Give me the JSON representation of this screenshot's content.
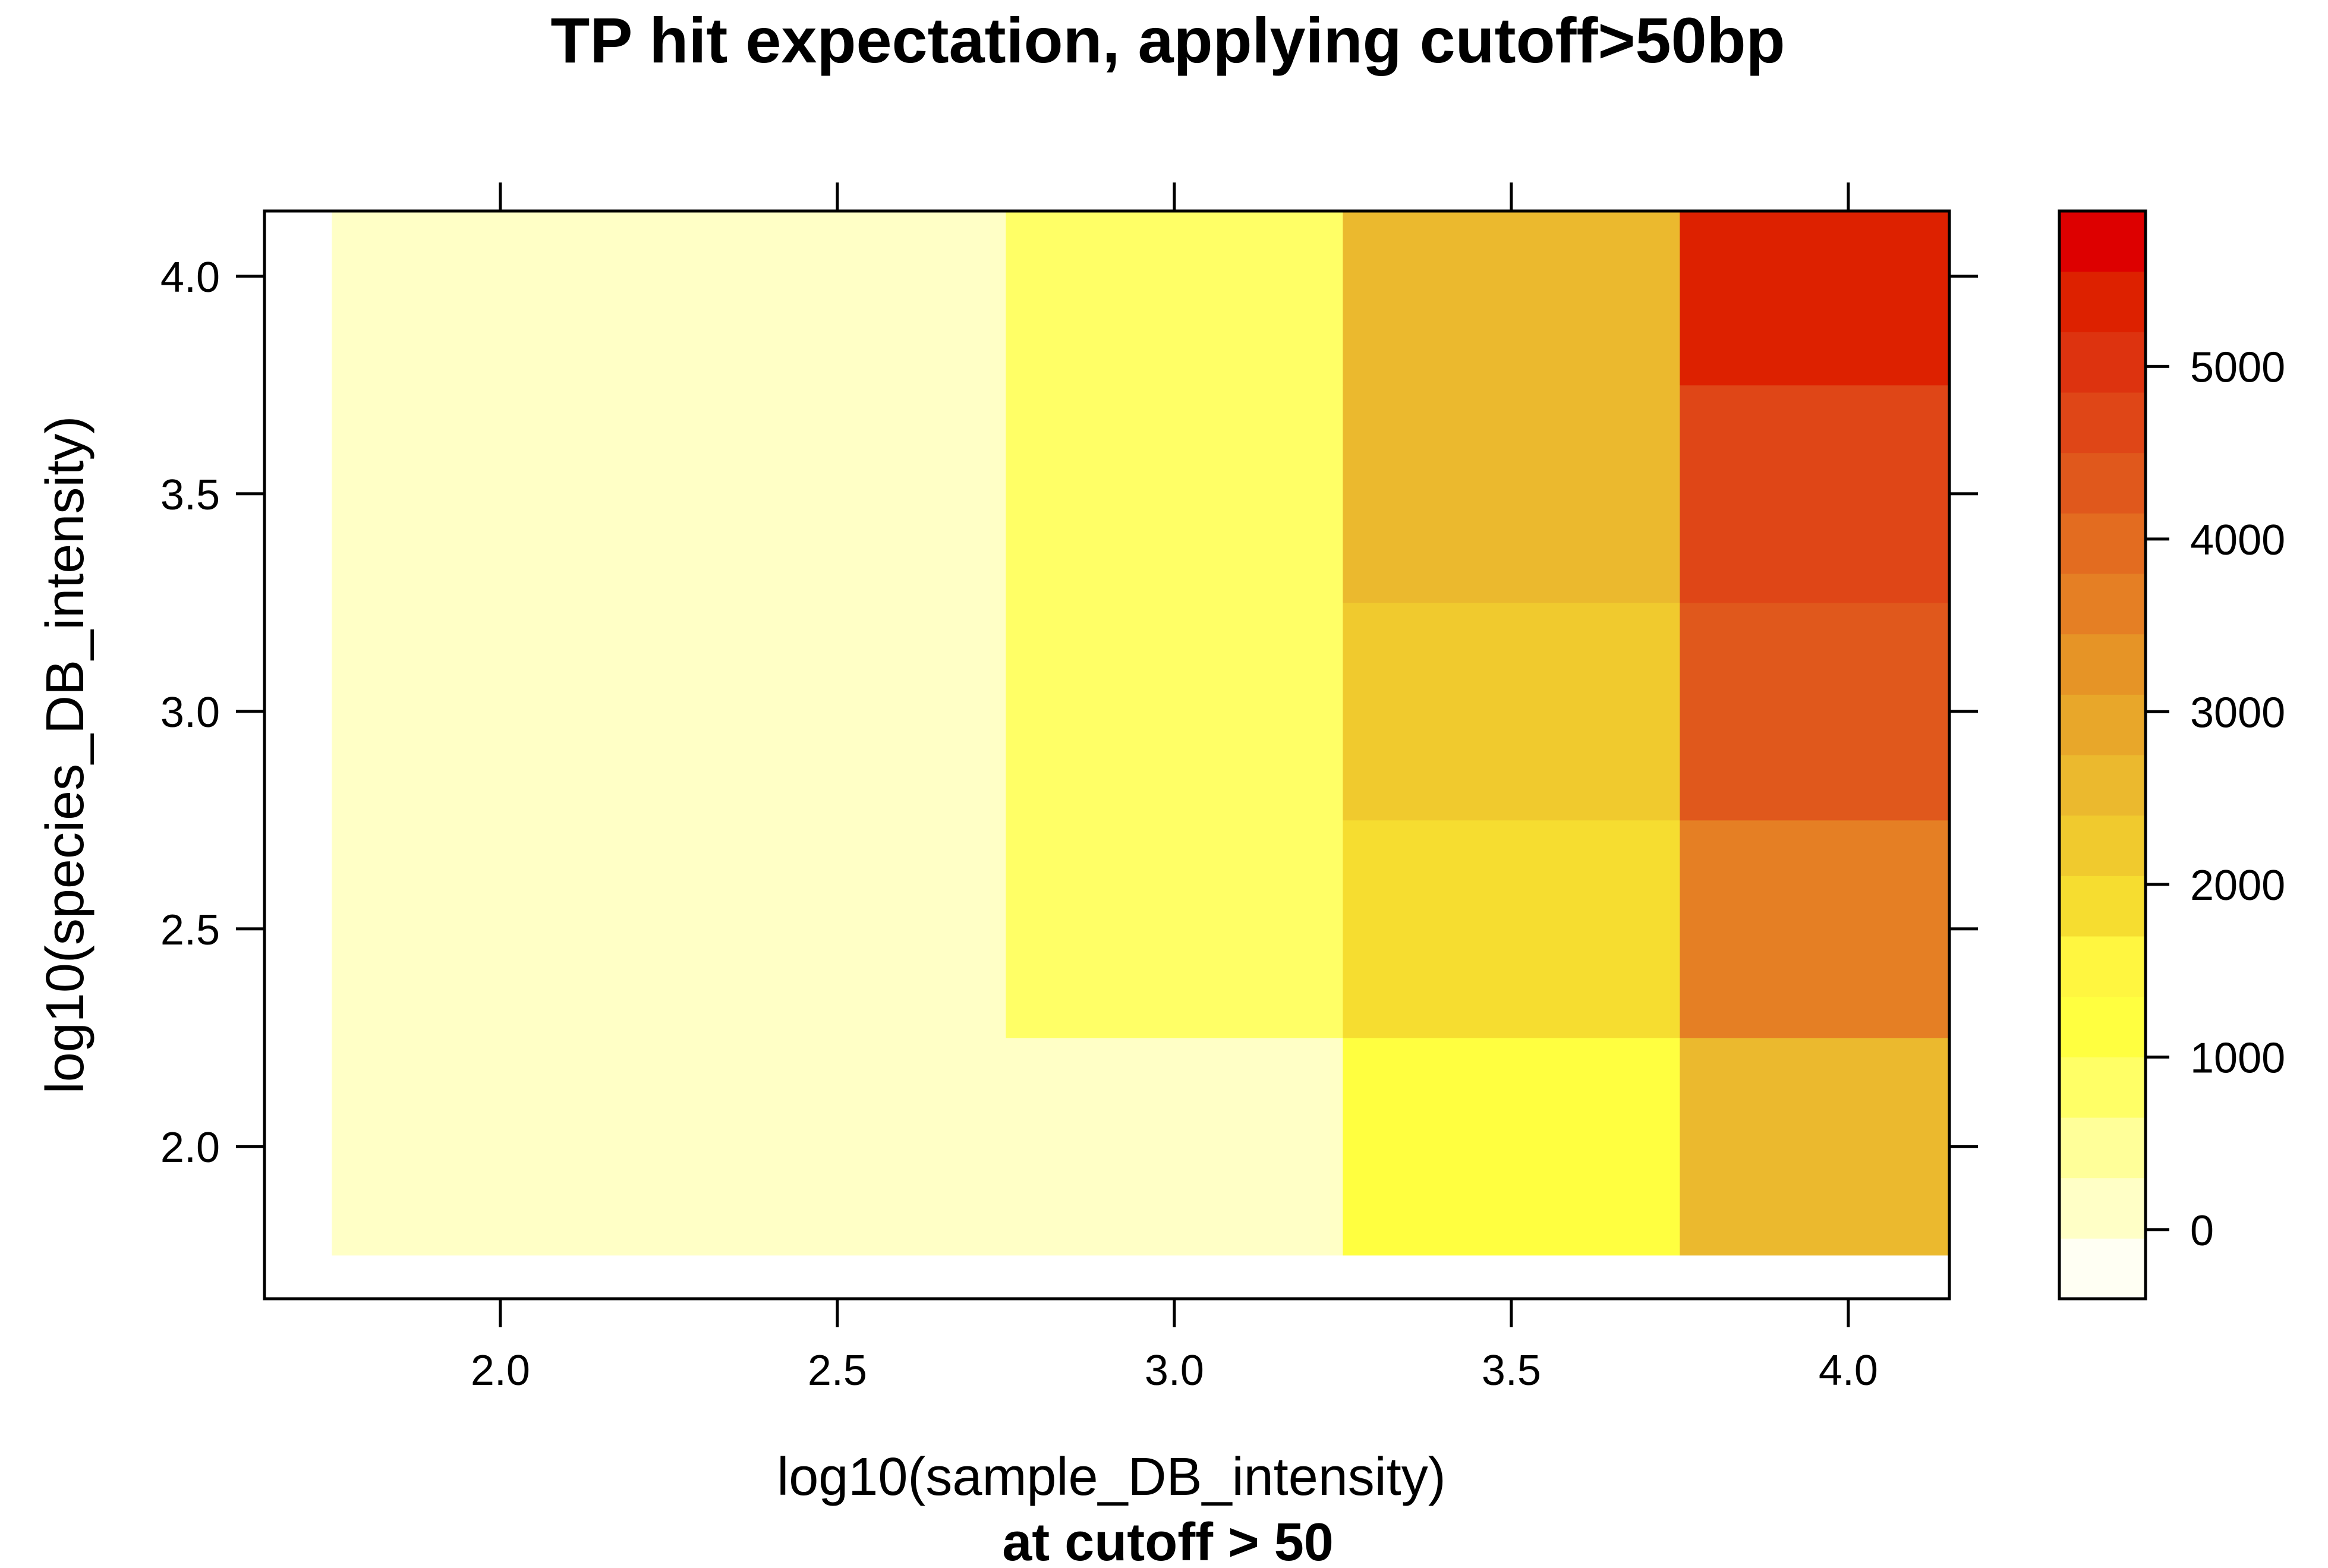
{
  "chart_data": {
    "type": "heatmap",
    "title": "TP hit expectation, applying cutoff>50bp",
    "xlabel": "log10(sample_DB_intensity)",
    "xlabel_sub": "at cutoff > 50",
    "ylabel": "log10(species_DB_intensity)",
    "x": [
      2.0,
      2.5,
      3.0,
      3.5,
      4.0
    ],
    "y": [
      2.0,
      2.5,
      3.0,
      3.5,
      4.0
    ],
    "x_ticks": [
      "2.0",
      "2.5",
      "3.0",
      "3.5",
      "4.0"
    ],
    "y_ticks": [
      "2.0",
      "2.5",
      "3.0",
      "3.5",
      "4.0"
    ],
    "xlim": [
      1.65,
      4.15
    ],
    "ylim": [
      1.65,
      4.15
    ],
    "z": [
      [
        150,
        150,
        150,
        1250,
        2700
      ],
      [
        150,
        150,
        750,
        1850,
        3700
      ],
      [
        150,
        150,
        750,
        2200,
        4200
      ],
      [
        150,
        150,
        750,
        2500,
        4700
      ],
      [
        150,
        150,
        750,
        2500,
        5200
      ]
    ],
    "colorkey": {
      "ticks": [
        "0",
        "1000",
        "2000",
        "3000",
        "4000",
        "5000"
      ],
      "tick_values": [
        0,
        1000,
        2000,
        3000,
        4000,
        5000
      ],
      "range": [
        -400,
        5900
      ],
      "colors": [
        "#FFFFF3",
        "#FFFFC6",
        "#FFFF99",
        "#FFFF66",
        "#FFFF40",
        "#FFF640",
        "#F6DD30",
        "#F0CA2E",
        "#EBB92E",
        "#E8A72A",
        "#E69426",
        "#E57F24",
        "#E36C20",
        "#E0581C",
        "#DF4617",
        "#DD330F",
        "#DD2100",
        "#DD0000"
      ]
    }
  }
}
